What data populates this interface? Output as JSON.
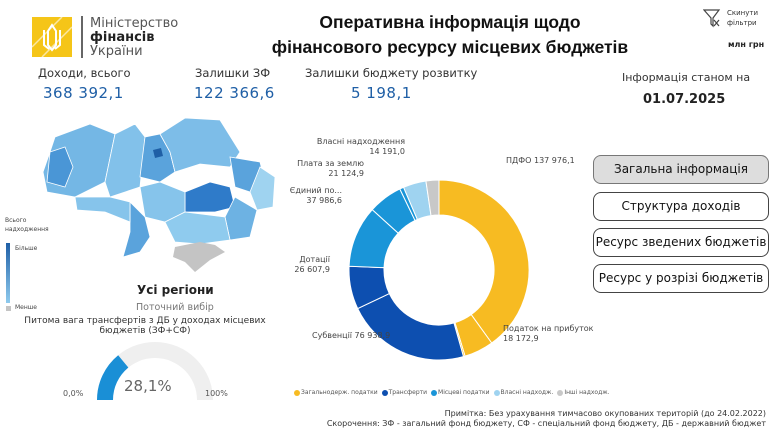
{
  "header": {
    "logo": {
      "line1": "Міністерство",
      "line2": "фінансів",
      "line3": "України"
    },
    "title_line1": "Оперативна інформація щодо",
    "title_line2": "фінансового ресурсу місцевих бюджетів",
    "reset_filters": "Скинути фільтри",
    "reset_icon": "filter-clear-icon",
    "units": "млн грн"
  },
  "kpis": [
    {
      "label": "Доходи, всього",
      "value": "368 392,1"
    },
    {
      "label": "Залишки ЗФ",
      "value": "122 366,6"
    },
    {
      "label": "Залишки бюджету розвитку",
      "value": "5 198,1"
    }
  ],
  "as_of": {
    "label": "Інформація станом на",
    "date": "01.07.2025"
  },
  "map": {
    "legend_title_1": "Всього",
    "legend_title_2": "надходження",
    "legend_more": "Більше",
    "legend_less": "Менше",
    "region_title": "Усі регіони",
    "region_subtitle": "Поточний вибір",
    "colors": {
      "dark": "#1f5fa6",
      "light": "#8fcbee",
      "na": "#c4c4c4"
    }
  },
  "buttons": [
    "Загальна інформація",
    "Структура доходів",
    "Ресурс зведених бюджетів",
    "Ресурс у розрізі бюджетів"
  ],
  "gauge": {
    "title": "Питома вага трансфертів з ДБ у доходах місцевих бюджетів (ЗФ+СФ)",
    "value": 28.1,
    "value_label": "28,1%",
    "min_label": "0,0%",
    "max_label": "100%",
    "color": "#1a8fd6",
    "track": "#efefef"
  },
  "chart_data": {
    "type": "pie",
    "variant": "donut",
    "segments": [
      {
        "label": "ПДФО 137 976,1",
        "name": "ПДФО",
        "value": 137976.1,
        "group": 0
      },
      {
        "label": "Податок на прибуток",
        "label2": "18 172,9",
        "name": "Податок на прибуток",
        "value": 18172.9,
        "group": 0
      },
      {
        "label": "",
        "value": 1000,
        "group": 0
      },
      {
        "label": "Субвенції 76 938,9",
        "name": "Субвенції",
        "value": 76938.9,
        "group": 1
      },
      {
        "label": "Дотації",
        "label2": "26 607,9",
        "name": "Дотації",
        "value": 26607.9,
        "group": 1
      },
      {
        "label": "Єдиний по...",
        "label2": "37 986,6",
        "name": "Єдиний податок",
        "value": 37986.6,
        "group": 2
      },
      {
        "label": "Плата за землю",
        "label2": "21 124,9",
        "name": "Плата за землю",
        "value": 21124.9,
        "group": 2
      },
      {
        "label": "",
        "value": 2500,
        "group": 2
      },
      {
        "label": "Власні надходження",
        "label2": "14 191,0",
        "name": "Власні надходження",
        "value": 14191.0,
        "group": 3
      },
      {
        "label": "",
        "value": 8000,
        "group": 4
      }
    ],
    "legend": [
      {
        "name": "Загальнодерж. податки",
        "color": "#f7bb22"
      },
      {
        "name": "Трансферти",
        "color": "#0d4fb0"
      },
      {
        "name": "Місцеві податки",
        "color": "#1a95d8"
      },
      {
        "name": "Власні надходж.",
        "color": "#9fd3f0"
      },
      {
        "name": "Інші надходж.",
        "color": "#c8c8c8"
      }
    ],
    "legend_position": "bottom"
  },
  "notes": {
    "line1": "Примітка: Без урахування тимчасово окупованих територій (до 24.02.2022)",
    "line2": "Скорочення: ЗФ - загальний фонд бюджету, СФ - спеціальний фонд бюджету, ДБ - державний бюджет"
  }
}
